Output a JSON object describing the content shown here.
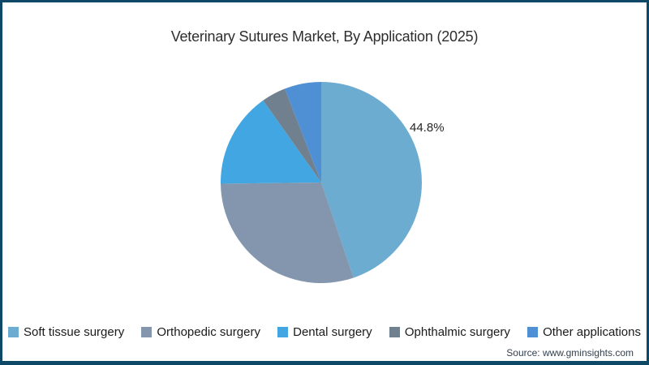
{
  "chart_data": {
    "type": "pie",
    "title": "Veterinary Sutures Market, By Application (2025)",
    "categories": [
      "Soft tissue surgery",
      "Orthopedic surgery",
      "Dental surgery",
      "Ophthalmic surgery",
      "Other applications"
    ],
    "values": [
      44.8,
      30.0,
      15.4,
      3.9,
      5.9
    ],
    "colors": [
      "#6cacd1",
      "#8496ae",
      "#41a6e1",
      "#70808f",
      "#4e90d3"
    ],
    "start_angle_deg": 0,
    "direction": "clockwise",
    "data_label": "44.8%",
    "labeled_slice": "Soft tissue surgery",
    "legend_position": "bottom",
    "grid": "off"
  },
  "source": "Source: www.gminsights.com",
  "theme": {
    "border_color": "#0d4866",
    "background": "#ffffff",
    "title_color": "#2e2e2e",
    "legend_text_color": "#1a1a1a",
    "source_text_color": "#33414e"
  }
}
